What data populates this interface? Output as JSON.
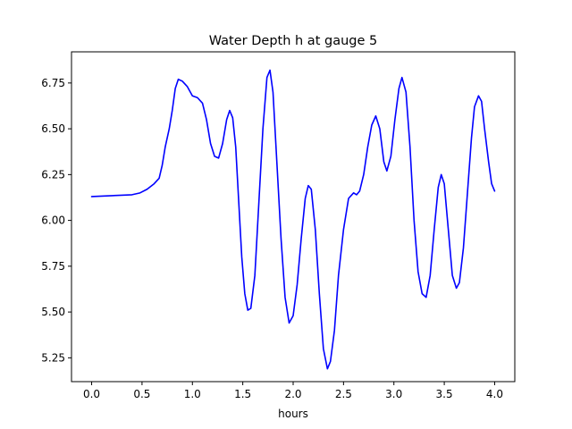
{
  "chart_data": {
    "type": "line",
    "title": "Water Depth h at gauge 5",
    "xlabel": "hours",
    "ylabel": "",
    "xlim": [
      -0.2,
      4.2
    ],
    "ylim": [
      5.12,
      6.92
    ],
    "xticks": [
      0.0,
      0.5,
      1.0,
      1.5,
      2.0,
      2.5,
      3.0,
      3.5,
      4.0
    ],
    "xtick_labels": [
      "0.0",
      "0.5",
      "1.0",
      "1.5",
      "2.0",
      "2.5",
      "3.0",
      "3.5",
      "4.0"
    ],
    "yticks": [
      5.25,
      5.5,
      5.75,
      6.0,
      6.25,
      6.5,
      6.75
    ],
    "ytick_labels": [
      "5.25",
      "5.50",
      "5.75",
      "6.00",
      "6.25",
      "6.50",
      "6.75"
    ],
    "grid": false,
    "legend": "none",
    "series": [
      {
        "color": "#0000ff",
        "points": [
          [
            0.0,
            6.13
          ],
          [
            0.2,
            6.135
          ],
          [
            0.4,
            6.14
          ],
          [
            0.48,
            6.15
          ],
          [
            0.55,
            6.17
          ],
          [
            0.62,
            6.2
          ],
          [
            0.67,
            6.23
          ],
          [
            0.7,
            6.3
          ],
          [
            0.73,
            6.4
          ],
          [
            0.77,
            6.5
          ],
          [
            0.8,
            6.6
          ],
          [
            0.83,
            6.72
          ],
          [
            0.86,
            6.77
          ],
          [
            0.9,
            6.76
          ],
          [
            0.95,
            6.73
          ],
          [
            1.0,
            6.68
          ],
          [
            1.05,
            6.67
          ],
          [
            1.1,
            6.64
          ],
          [
            1.14,
            6.55
          ],
          [
            1.18,
            6.42
          ],
          [
            1.22,
            6.35
          ],
          [
            1.26,
            6.34
          ],
          [
            1.3,
            6.42
          ],
          [
            1.34,
            6.55
          ],
          [
            1.37,
            6.6
          ],
          [
            1.4,
            6.56
          ],
          [
            1.43,
            6.4
          ],
          [
            1.46,
            6.1
          ],
          [
            1.49,
            5.8
          ],
          [
            1.52,
            5.6
          ],
          [
            1.55,
            5.51
          ],
          [
            1.58,
            5.52
          ],
          [
            1.62,
            5.7
          ],
          [
            1.66,
            6.1
          ],
          [
            1.7,
            6.5
          ],
          [
            1.74,
            6.78
          ],
          [
            1.77,
            6.82
          ],
          [
            1.8,
            6.7
          ],
          [
            1.84,
            6.3
          ],
          [
            1.88,
            5.9
          ],
          [
            1.92,
            5.58
          ],
          [
            1.96,
            5.44
          ],
          [
            2.0,
            5.48
          ],
          [
            2.04,
            5.65
          ],
          [
            2.08,
            5.9
          ],
          [
            2.12,
            6.12
          ],
          [
            2.15,
            6.19
          ],
          [
            2.18,
            6.17
          ],
          [
            2.22,
            5.95
          ],
          [
            2.26,
            5.6
          ],
          [
            2.3,
            5.3
          ],
          [
            2.34,
            5.19
          ],
          [
            2.37,
            5.23
          ],
          [
            2.41,
            5.4
          ],
          [
            2.45,
            5.7
          ],
          [
            2.5,
            5.95
          ],
          [
            2.55,
            6.12
          ],
          [
            2.6,
            6.15
          ],
          [
            2.63,
            6.14
          ],
          [
            2.66,
            6.16
          ],
          [
            2.7,
            6.25
          ],
          [
            2.74,
            6.4
          ],
          [
            2.78,
            6.52
          ],
          [
            2.82,
            6.57
          ],
          [
            2.86,
            6.5
          ],
          [
            2.9,
            6.32
          ],
          [
            2.93,
            6.27
          ],
          [
            2.97,
            6.35
          ],
          [
            3.01,
            6.55
          ],
          [
            3.05,
            6.72
          ],
          [
            3.08,
            6.78
          ],
          [
            3.12,
            6.7
          ],
          [
            3.16,
            6.4
          ],
          [
            3.2,
            6.0
          ],
          [
            3.24,
            5.72
          ],
          [
            3.28,
            5.6
          ],
          [
            3.32,
            5.58
          ],
          [
            3.36,
            5.7
          ],
          [
            3.4,
            5.95
          ],
          [
            3.44,
            6.18
          ],
          [
            3.47,
            6.25
          ],
          [
            3.5,
            6.2
          ],
          [
            3.54,
            5.95
          ],
          [
            3.58,
            5.7
          ],
          [
            3.62,
            5.63
          ],
          [
            3.65,
            5.66
          ],
          [
            3.69,
            5.85
          ],
          [
            3.73,
            6.15
          ],
          [
            3.77,
            6.45
          ],
          [
            3.8,
            6.62
          ],
          [
            3.84,
            6.68
          ],
          [
            3.87,
            6.65
          ],
          [
            3.9,
            6.5
          ],
          [
            3.94,
            6.32
          ],
          [
            3.97,
            6.2
          ],
          [
            4.0,
            6.16
          ]
        ]
      }
    ]
  }
}
